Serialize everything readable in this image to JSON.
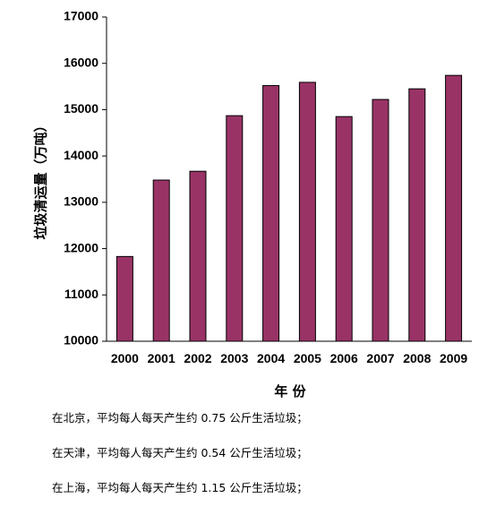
{
  "chart_data": {
    "type": "bar",
    "categories": [
      "2000",
      "2001",
      "2002",
      "2003",
      "2004",
      "2005",
      "2006",
      "2007",
      "2008",
      "2009"
    ],
    "values": [
      11830,
      13480,
      13670,
      14870,
      15520,
      15590,
      14850,
      15220,
      15450,
      15740
    ],
    "xlabel": "年 份",
    "ylabel": "垃圾清运量（万吨）",
    "ylim": [
      10000,
      17000
    ],
    "yticks": [
      10000,
      11000,
      12000,
      13000,
      14000,
      15000,
      16000,
      17000
    ],
    "grid": false,
    "legend": "none",
    "bar_color": "#993366",
    "bar_edge_color": "#000000"
  },
  "notes": [
    "在北京，平均每人每天产生约 0.75 公斤生活垃圾；",
    "在天津，平均每人每天产生约 0.54 公斤生活垃圾；",
    "在上海，平均每人每天产生约 1.15 公斤生活垃圾；"
  ]
}
